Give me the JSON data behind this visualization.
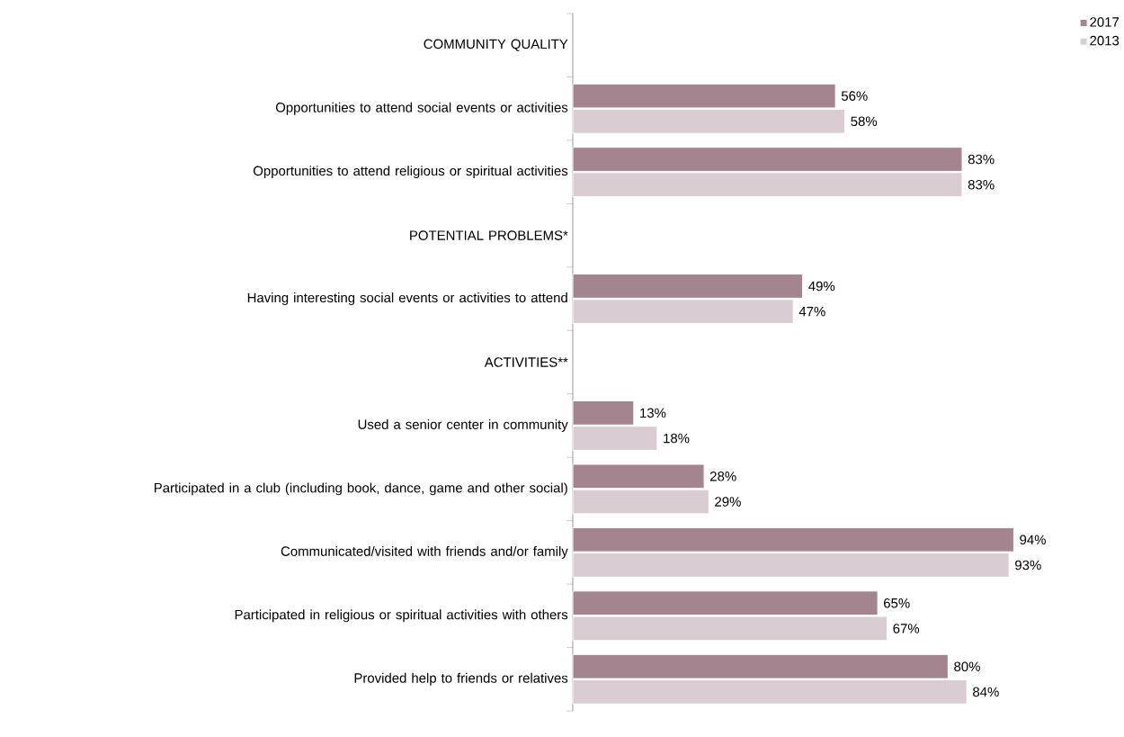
{
  "chart_data": {
    "type": "bar",
    "orientation": "horizontal",
    "categories": [
      "COMMUNITY QUALITY",
      "Opportunities to attend social events or activities",
      "Opportunities to attend religious or spiritual activities",
      "POTENTIAL PROBLEMS*",
      "Having interesting social events or activities to attend",
      "ACTIVITIES**",
      "Used a senior center in community",
      "Participated in a club (including book, dance, game and other social)",
      "Communicated/visited with friends and/or family",
      "Participated in religious or spiritual activities with others",
      "Provided help to friends or relatives"
    ],
    "series": [
      {
        "name": "2017",
        "color": "#a3848f",
        "values": [
          null,
          56,
          83,
          null,
          49,
          null,
          13,
          28,
          94,
          65,
          80
        ],
        "value_labels": [
          null,
          "56%",
          "83%",
          null,
          "49%",
          null,
          "13%",
          "28%",
          "94%",
          "65%",
          "80%"
        ]
      },
      {
        "name": "2013",
        "color": "#d9ccd3",
        "values": [
          null,
          58,
          83,
          null,
          47,
          null,
          18,
          29,
          93,
          67,
          84
        ],
        "value_labels": [
          null,
          "58%",
          "83%",
          null,
          "47%",
          null,
          "18%",
          "29%",
          "93%",
          "67%",
          "84%"
        ]
      }
    ],
    "legend": "top right"
  }
}
